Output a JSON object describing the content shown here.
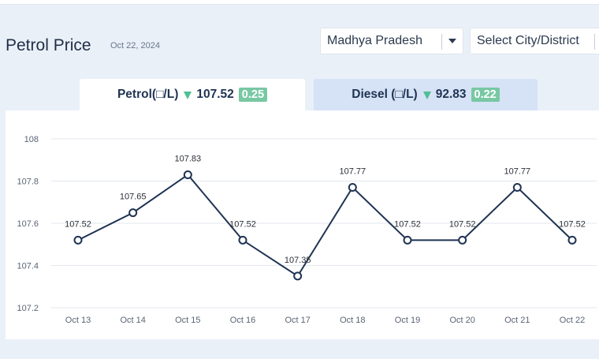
{
  "header": {
    "title": "Petrol Price",
    "date": "Oct 22, 2024",
    "state_select": "Madhya Pradesh",
    "city_select": "Select City/District"
  },
  "tabs": {
    "petrol": {
      "label": "Petrol(□/L)",
      "price": "107.52",
      "change": "0.25"
    },
    "diesel": {
      "label": "Diesel (□/L)",
      "price": "92.83",
      "change": "0.22"
    }
  },
  "colors": {
    "line": "#1f3353",
    "grid": "#e3e7ee",
    "badge": "#78c8a4",
    "down_arrow": "#4fbf95"
  },
  "chart_data": {
    "type": "line",
    "title": "",
    "xlabel": "",
    "ylabel": "",
    "ylim": [
      107.2,
      108
    ],
    "yticks": [
      107.2,
      107.4,
      107.6,
      107.8,
      108
    ],
    "categories": [
      "Oct 13",
      "Oct 14",
      "Oct 15",
      "Oct 16",
      "Oct 17",
      "Oct 18",
      "Oct 19",
      "Oct 20",
      "Oct 21",
      "Oct 22"
    ],
    "series": [
      {
        "values": [
          107.52,
          107.65,
          107.83,
          107.52,
          107.35,
          107.77,
          107.52,
          107.52,
          107.77,
          107.52
        ]
      }
    ],
    "grid": "horizontal",
    "markers": "hollow-circle"
  }
}
